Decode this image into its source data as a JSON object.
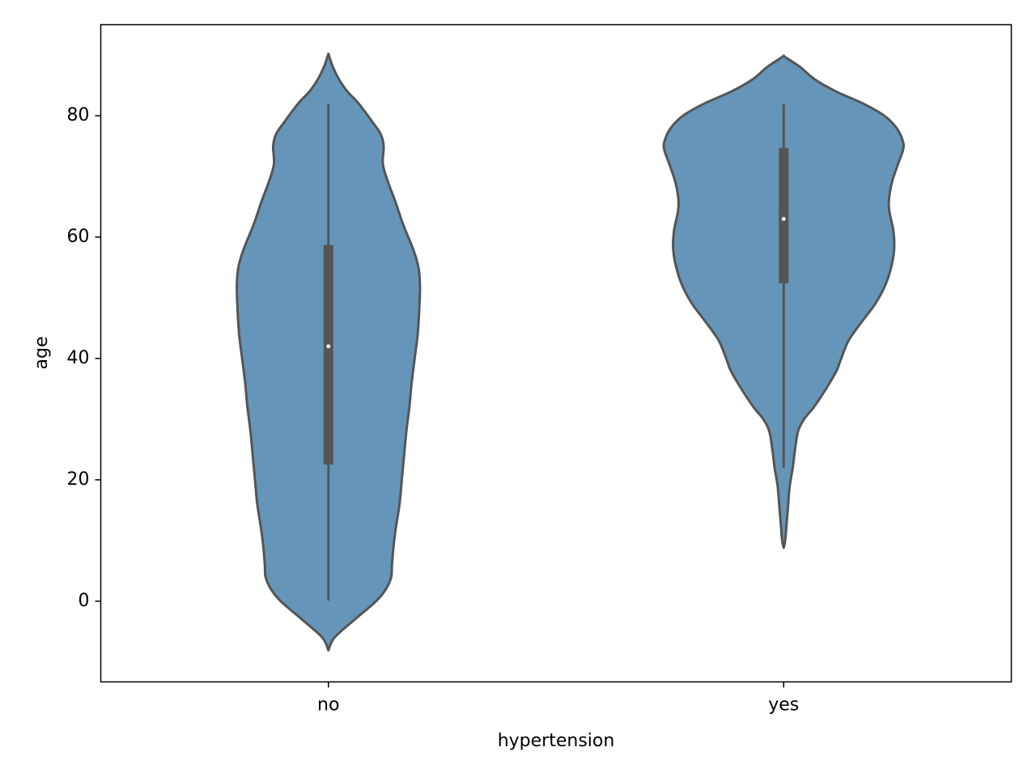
{
  "chart_data": {
    "type": "violin",
    "xlabel": "hypertension",
    "ylabel": "age",
    "categories": [
      "no",
      "yes"
    ],
    "ylim": [
      -13.3,
      95
    ],
    "yticks": [
      0,
      20,
      40,
      60,
      80
    ],
    "grid": false,
    "colors": {
      "fill": "#6596ba",
      "outline": "#555555",
      "whisker": "#555555",
      "median": "#ffffff",
      "frame": "#000000"
    },
    "violins": [
      {
        "category": "no",
        "min": 0.08,
        "q1": 22.5,
        "median": 42,
        "q3": 58.7,
        "max": 82,
        "kde_y_range": [
          -8.1,
          90.2
        ],
        "profile": [
          [
            -8.1,
            0.0
          ],
          [
            -6.0,
            0.08
          ],
          [
            -3.0,
            0.35
          ],
          [
            0.0,
            0.63
          ],
          [
            2.0,
            0.76
          ],
          [
            4.0,
            0.83
          ],
          [
            6.0,
            0.84
          ],
          [
            9.0,
            0.86
          ],
          [
            12.0,
            0.89
          ],
          [
            16.0,
            0.94
          ],
          [
            20.0,
            0.97
          ],
          [
            24.0,
            1.0
          ],
          [
            28.0,
            1.03
          ],
          [
            32.0,
            1.07
          ],
          [
            36.0,
            1.1
          ],
          [
            40.0,
            1.14
          ],
          [
            44.0,
            1.18
          ],
          [
            48.0,
            1.2
          ],
          [
            52.0,
            1.21
          ],
          [
            55.0,
            1.19
          ],
          [
            58.0,
            1.12
          ],
          [
            62.0,
            0.99
          ],
          [
            66.0,
            0.88
          ],
          [
            69.0,
            0.79
          ],
          [
            72.0,
            0.72
          ],
          [
            75.0,
            0.73
          ],
          [
            77.0,
            0.69
          ],
          [
            79.0,
            0.58
          ],
          [
            82.0,
            0.4
          ],
          [
            84.0,
            0.25
          ],
          [
            86.0,
            0.14
          ],
          [
            88.0,
            0.06
          ],
          [
            90.2,
            0.0
          ]
        ]
      },
      {
        "category": "yes",
        "min": 22,
        "q1": 52.4,
        "median": 63,
        "q3": 74.7,
        "max": 82,
        "kde_y_range": [
          8.8,
          89.9
        ],
        "profile": [
          [
            8.8,
            0.0
          ],
          [
            10.0,
            0.02
          ],
          [
            13.0,
            0.04
          ],
          [
            16.0,
            0.06
          ],
          [
            19.0,
            0.08
          ],
          [
            22.0,
            0.12
          ],
          [
            25.0,
            0.15
          ],
          [
            28.0,
            0.19
          ],
          [
            30.0,
            0.27
          ],
          [
            32.0,
            0.4
          ],
          [
            35.0,
            0.56
          ],
          [
            38.0,
            0.7
          ],
          [
            40.0,
            0.76
          ],
          [
            43.0,
            0.86
          ],
          [
            46.0,
            1.03
          ],
          [
            49.0,
            1.21
          ],
          [
            52.0,
            1.34
          ],
          [
            55.0,
            1.42
          ],
          [
            58.0,
            1.46
          ],
          [
            61.0,
            1.45
          ],
          [
            64.0,
            1.4
          ],
          [
            66.0,
            1.39
          ],
          [
            69.0,
            1.43
          ],
          [
            72.0,
            1.51
          ],
          [
            74.5,
            1.58
          ],
          [
            76.0,
            1.57
          ],
          [
            78.0,
            1.49
          ],
          [
            80.0,
            1.33
          ],
          [
            82.0,
            1.05
          ],
          [
            84.0,
            0.69
          ],
          [
            86.0,
            0.41
          ],
          [
            88.0,
            0.22
          ],
          [
            89.5,
            0.04
          ],
          [
            89.9,
            0.0
          ]
        ]
      }
    ]
  }
}
